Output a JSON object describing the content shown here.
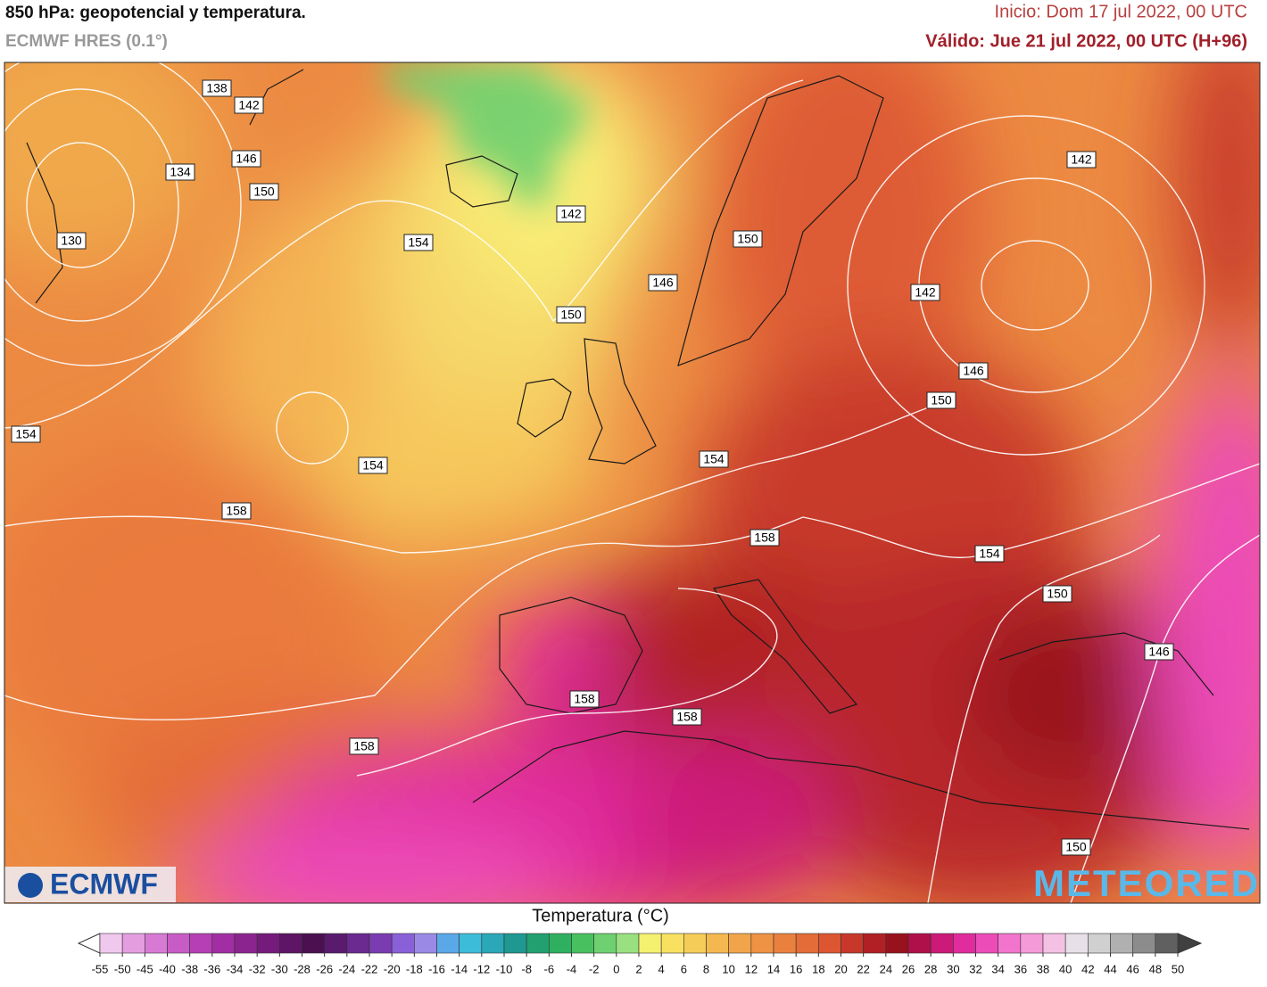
{
  "header": {
    "title": "850 hPa: geopotencial y temperatura.",
    "subtitle": "ECMWF HRES (0.1°)",
    "init": "Inicio: Dom 17 jul 2022, 00 UTC",
    "valid": "Válido: Jue 21 jul 2022, 00 UTC (H+96)"
  },
  "contour_labels": [
    138,
    142,
    146,
    134,
    150,
    130,
    154,
    142,
    150,
    146,
    150,
    142,
    142,
    146,
    150,
    154,
    154,
    154,
    158,
    158,
    154,
    150,
    146,
    158,
    158,
    158,
    150
  ],
  "logos": {
    "left": "ECMWF",
    "right": "METEORED"
  },
  "colorbar": {
    "title": "Temperatura (°C)",
    "ticks": [
      -55,
      -50,
      -45,
      -40,
      -38,
      -36,
      -34,
      -32,
      -30,
      -28,
      -26,
      -24,
      -22,
      -20,
      -18,
      -16,
      -14,
      -12,
      -10,
      -8,
      -6,
      -4,
      -2,
      0,
      2,
      4,
      6,
      8,
      10,
      12,
      14,
      16,
      18,
      20,
      22,
      24,
      26,
      28,
      30,
      32,
      34,
      36,
      38,
      40,
      42,
      44,
      46,
      48,
      50
    ],
    "colors": [
      "#f0c8ee",
      "#e49ee0",
      "#d77ad4",
      "#c85cc6",
      "#b63fb5",
      "#a12fa3",
      "#8c2490",
      "#751b7c",
      "#5e1566",
      "#4a1050",
      "#5a1a6e",
      "#6a2a90",
      "#7a3cb0",
      "#8a60d8",
      "#9a8ae6",
      "#5aa8e8",
      "#3cbcd8",
      "#2aa8b8",
      "#1e9890",
      "#22a070",
      "#2eb060",
      "#48c060",
      "#6ed070",
      "#98e080",
      "#f4f070",
      "#f8e060",
      "#f6cc58",
      "#f4b850",
      "#f2a44a",
      "#ee9244",
      "#ea803e",
      "#e46c38",
      "#dc5632",
      "#c8382a",
      "#b02024",
      "#98121e",
      "#b0104a",
      "#cc1a78",
      "#e02c9c",
      "#ec4cb8",
      "#f274cc",
      "#f49ad8",
      "#f4c0e4",
      "#e8e0e8",
      "#d0d0d0",
      "#b0b0b0",
      "#8c8c8c",
      "#606060"
    ],
    "under_color": "#ffffff",
    "over_color": "#404040"
  }
}
